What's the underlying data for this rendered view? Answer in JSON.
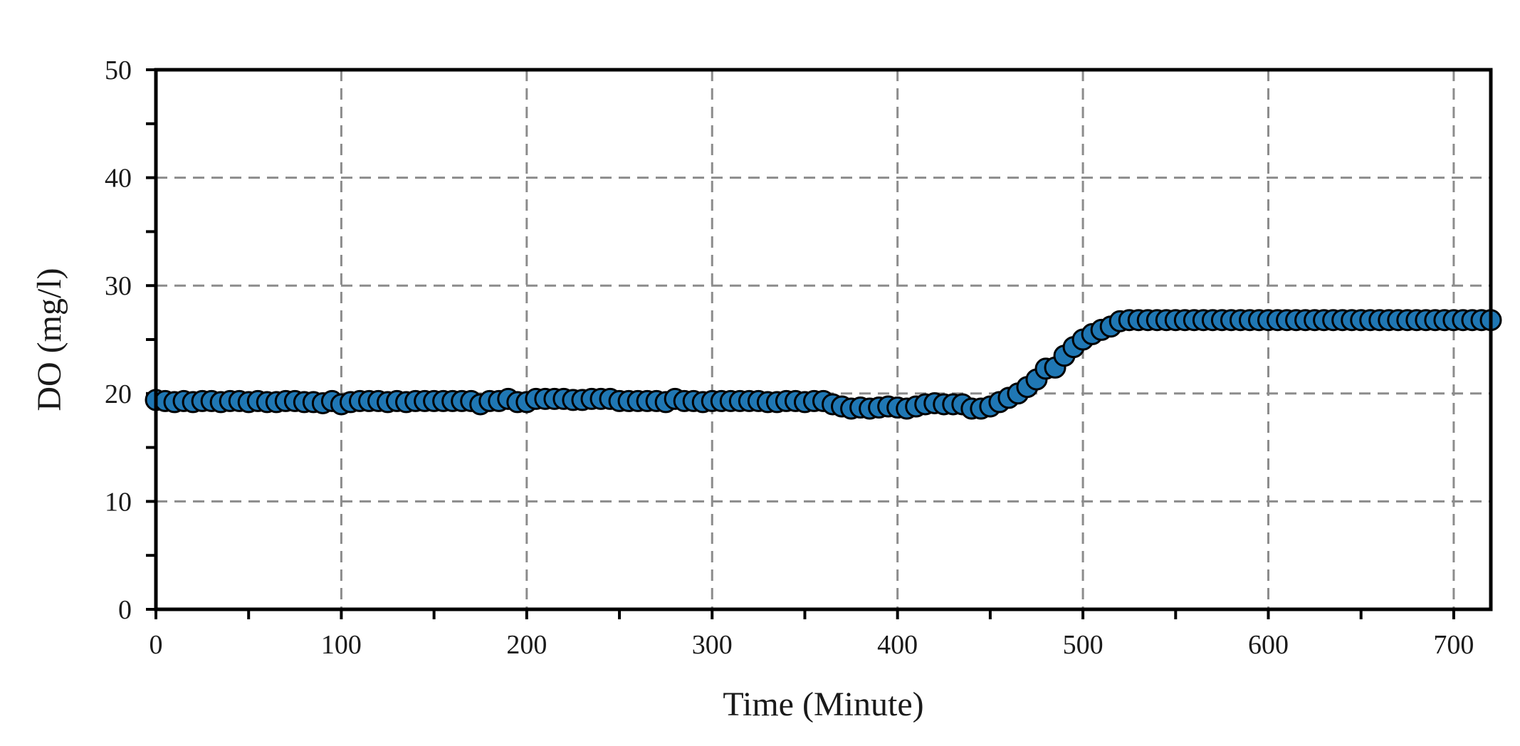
{
  "chart_data": {
    "type": "scatter",
    "xlabel": "Time (Minute)",
    "ylabel": "DO (mg/l)",
    "xlim": [
      0,
      720
    ],
    "ylim": [
      0,
      50
    ],
    "xticks": [
      0,
      100,
      200,
      300,
      400,
      500,
      600,
      700
    ],
    "yticks": [
      0,
      10,
      20,
      30,
      40,
      50
    ],
    "grid": true,
    "grid_style": "dashed",
    "marker_color": "#1f77b4",
    "marker_edge_color": "#000000",
    "series": [
      {
        "x": [
          0,
          5,
          10,
          15,
          20,
          25,
          30,
          35,
          40,
          45,
          50,
          55,
          60,
          65,
          70,
          75,
          80,
          85,
          90,
          95,
          100,
          105,
          110,
          115,
          120,
          125,
          130,
          135,
          140,
          145,
          150,
          155,
          160,
          165,
          170,
          175,
          180,
          185,
          190,
          195,
          200,
          205,
          210,
          215,
          220,
          225,
          230,
          235,
          240,
          245,
          250,
          255,
          260,
          265,
          270,
          275,
          280,
          285,
          290,
          295,
          300,
          305,
          310,
          315,
          320,
          325,
          330,
          335,
          340,
          345,
          350,
          355,
          360,
          365,
          370,
          375,
          380,
          385,
          390,
          395,
          400,
          405,
          410,
          415,
          420,
          425,
          430,
          435,
          440,
          445,
          450,
          455,
          460,
          465,
          470,
          475,
          480,
          485,
          490,
          495,
          500,
          505,
          510,
          515,
          520,
          525,
          530,
          535,
          540,
          545,
          550,
          555,
          560,
          565,
          570,
          575,
          580,
          585,
          590,
          595,
          600,
          605,
          610,
          615,
          620,
          625,
          630,
          635,
          640,
          645,
          650,
          655,
          660,
          665,
          670,
          675,
          680,
          685,
          690,
          695,
          700,
          705,
          710,
          715,
          720
        ],
        "y": [
          19.4,
          19.3,
          19.2,
          19.3,
          19.2,
          19.3,
          19.3,
          19.2,
          19.3,
          19.3,
          19.2,
          19.3,
          19.2,
          19.2,
          19.3,
          19.3,
          19.2,
          19.2,
          19.1,
          19.3,
          19.0,
          19.2,
          19.3,
          19.3,
          19.3,
          19.2,
          19.3,
          19.2,
          19.3,
          19.3,
          19.3,
          19.3,
          19.3,
          19.3,
          19.3,
          19.0,
          19.3,
          19.3,
          19.5,
          19.2,
          19.2,
          19.5,
          19.5,
          19.5,
          19.5,
          19.4,
          19.4,
          19.5,
          19.5,
          19.5,
          19.3,
          19.3,
          19.3,
          19.3,
          19.3,
          19.2,
          19.5,
          19.3,
          19.3,
          19.2,
          19.3,
          19.3,
          19.3,
          19.3,
          19.3,
          19.3,
          19.2,
          19.2,
          19.3,
          19.3,
          19.2,
          19.3,
          19.3,
          19.0,
          18.8,
          18.6,
          18.7,
          18.6,
          18.7,
          18.8,
          18.7,
          18.6,
          18.8,
          19.0,
          19.1,
          19.0,
          19.0,
          19.0,
          18.6,
          18.6,
          18.8,
          19.2,
          19.6,
          20.0,
          20.6,
          21.3,
          22.3,
          22.4,
          23.5,
          24.3,
          25.0,
          25.5,
          25.9,
          26.2,
          26.7,
          26.8,
          26.8,
          26.8,
          26.8,
          26.8,
          26.8,
          26.8,
          26.8,
          26.8,
          26.8,
          26.8,
          26.8,
          26.8,
          26.8,
          26.8,
          26.8,
          26.8,
          26.8,
          26.8,
          26.8,
          26.8,
          26.8,
          26.8,
          26.8,
          26.8,
          26.8,
          26.8,
          26.8,
          26.8,
          26.8,
          26.8,
          26.8,
          26.8,
          26.8,
          26.8,
          26.8,
          26.8,
          26.8,
          26.8,
          26.8
        ]
      }
    ]
  }
}
